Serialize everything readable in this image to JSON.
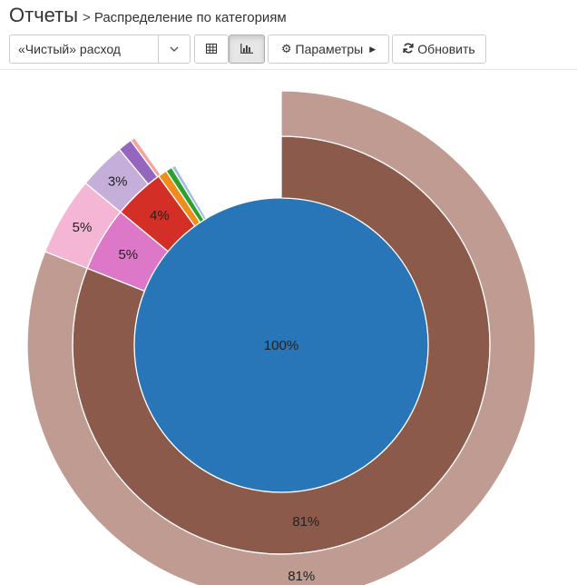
{
  "header": {
    "title": "Отчеты",
    "separator": ">",
    "subtitle": "Распределение по категориям"
  },
  "toolbar": {
    "select_value": "«Чистый» расход",
    "params_label": "Параметры",
    "refresh_label": "Обновить"
  },
  "icons": {
    "select_caret": "chevron-down-icon",
    "table_view": "table-icon",
    "chart_view": "bar-chart-icon",
    "params": "gear-icon",
    "params_arrow": "caret-right-icon",
    "refresh": "refresh-icon"
  },
  "chart_data": {
    "type": "pie",
    "variant": "nested-donut",
    "title": "",
    "rings": [
      {
        "name": "inner",
        "slices": [
          {
            "value": 100,
            "label": "100%",
            "color": "#2876b8"
          }
        ]
      },
      {
        "name": "middle",
        "slices": [
          {
            "value": 81,
            "label": "81%",
            "color": "#8c5a4b"
          },
          {
            "value": 5,
            "label": "5%",
            "color": "#dd77c8"
          },
          {
            "value": 4,
            "label": "4%",
            "color": "#d42f27"
          },
          {
            "value": 0.7,
            "label": "",
            "color": "#f08c1c"
          },
          {
            "value": 0.5,
            "label": "",
            "color": "#2ea02c"
          },
          {
            "value": 0.3,
            "label": "",
            "color": "#9dbee6"
          }
        ]
      },
      {
        "name": "outer",
        "slices": [
          {
            "value": 81,
            "label": "81%",
            "color": "#c09b92"
          },
          {
            "value": 5,
            "label": "5%",
            "color": "#f4b6d4"
          },
          {
            "value": 3,
            "label": "3%",
            "color": "#c5aed9"
          },
          {
            "value": 0.9,
            "label": "",
            "color": "#9466bd"
          },
          {
            "value": 0.3,
            "label": "",
            "color": "#f6a4a0"
          }
        ]
      }
    ]
  }
}
